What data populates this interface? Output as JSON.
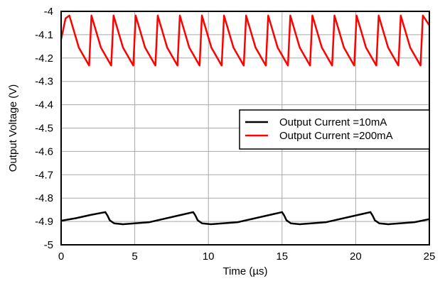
{
  "chart_data": {
    "type": "line",
    "xlabel": "Time (µs)",
    "ylabel": "Output Voltage (V)",
    "xlim": [
      0,
      25
    ],
    "ylim": [
      -5,
      -4
    ],
    "x_ticks": [
      0,
      5,
      10,
      15,
      20,
      25
    ],
    "y_ticks": [
      -4,
      -4.1,
      -4.2,
      -4.3,
      -4.4,
      -4.5,
      -4.6,
      -4.7,
      -4.8,
      -4.9,
      -5
    ],
    "x_tick_labels": [
      "0",
      "5",
      "10",
      "15",
      "20",
      "25"
    ],
    "y_tick_labels": [
      "-4",
      "-4.1",
      "-4.2",
      "-4.3",
      "-4.4",
      "-4.5",
      "-4.6",
      "-4.7",
      "-4.8",
      "-4.9",
      "-5"
    ],
    "grid": true,
    "legend_position": "center-right",
    "series": [
      {
        "name": "Output Current =10mA",
        "color": "#000000",
        "x": [
          0,
          1,
          2,
          3,
          3.15,
          3.3,
          3.6,
          4.2,
          6,
          8.97,
          9.12,
          9.27,
          9.57,
          10.17,
          12,
          15,
          15.15,
          15.3,
          15.6,
          16.2,
          18,
          21,
          21.15,
          21.3,
          21.6,
          22.2,
          24,
          25
        ],
        "y": [
          -4.897,
          -4.886,
          -4.872,
          -4.86,
          -4.875,
          -4.895,
          -4.908,
          -4.912,
          -4.903,
          -4.86,
          -4.875,
          -4.895,
          -4.908,
          -4.912,
          -4.903,
          -4.86,
          -4.875,
          -4.895,
          -4.908,
          -4.912,
          -4.903,
          -4.86,
          -4.875,
          -4.895,
          -4.908,
          -4.912,
          -4.903,
          -4.89
        ]
      },
      {
        "name": "Output Current =200mA",
        "color": "#ff0000",
        "x": [
          0,
          0.3,
          0.56,
          1.2,
          1.9,
          2.06,
          2.7,
          3.4,
          3.56,
          4.2,
          4.9,
          5.06,
          5.7,
          6.4,
          6.56,
          7.2,
          7.9,
          8.06,
          8.7,
          9.4,
          9.56,
          10.2,
          10.9,
          11.06,
          11.7,
          12.4,
          12.56,
          13.2,
          13.9,
          14.06,
          14.7,
          15.4,
          15.56,
          16.2,
          16.9,
          17.06,
          17.7,
          18.4,
          18.56,
          19.2,
          19.9,
          20.06,
          20.7,
          21.4,
          21.56,
          22.2,
          22.9,
          23.06,
          23.7,
          24.4,
          24.56,
          25
        ],
        "y": [
          -4.12,
          -4.03,
          -4.018,
          -4.155,
          -4.232,
          -4.018,
          -4.155,
          -4.232,
          -4.018,
          -4.155,
          -4.232,
          -4.018,
          -4.155,
          -4.232,
          -4.018,
          -4.155,
          -4.232,
          -4.018,
          -4.155,
          -4.232,
          -4.018,
          -4.155,
          -4.232,
          -4.018,
          -4.155,
          -4.232,
          -4.018,
          -4.155,
          -4.232,
          -4.018,
          -4.155,
          -4.232,
          -4.018,
          -4.155,
          -4.232,
          -4.018,
          -4.155,
          -4.232,
          -4.018,
          -4.155,
          -4.232,
          -4.018,
          -4.155,
          -4.232,
          -4.018,
          -4.155,
          -4.232,
          -4.018,
          -4.155,
          -4.232,
          -4.018,
          -4.06
        ]
      }
    ]
  }
}
